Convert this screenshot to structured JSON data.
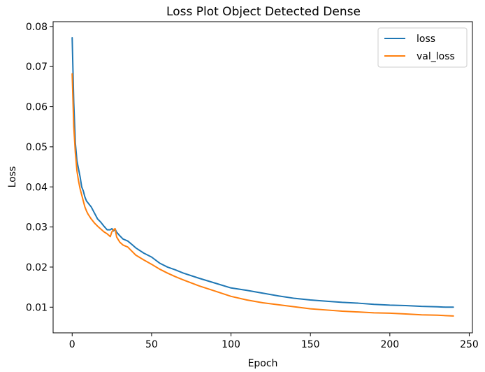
{
  "chart_data": {
    "type": "line",
    "title": "Loss Plot Object Detected Dense",
    "xlabel": "Epoch",
    "ylabel": "Loss",
    "xlim": [
      -12,
      252
    ],
    "ylim": [
      0.0036,
      0.0812
    ],
    "xticks": [
      0,
      50,
      100,
      150,
      200,
      250
    ],
    "yticks": [
      0.01,
      0.02,
      0.03,
      0.04,
      0.05,
      0.06,
      0.07,
      0.08
    ],
    "grid": false,
    "legend_position": "upper right",
    "series": [
      {
        "name": "loss",
        "color": "#1f77b4",
        "x": [
          0,
          1,
          2,
          3,
          4,
          5,
          6,
          7,
          8,
          9,
          10,
          12,
          14,
          16,
          18,
          20,
          22,
          24,
          25,
          26,
          27,
          28,
          30,
          32,
          35,
          38,
          40,
          45,
          50,
          55,
          60,
          65,
          70,
          80,
          90,
          100,
          110,
          120,
          130,
          140,
          150,
          160,
          170,
          180,
          190,
          200,
          210,
          220,
          230,
          235,
          240
        ],
        "y": [
          0.0772,
          0.061,
          0.051,
          0.0465,
          0.0445,
          0.0425,
          0.04,
          0.039,
          0.0375,
          0.0365,
          0.036,
          0.035,
          0.0335,
          0.032,
          0.0312,
          0.0302,
          0.0293,
          0.0293,
          0.0296,
          0.029,
          0.0295,
          0.0287,
          0.0278,
          0.027,
          0.0265,
          0.0255,
          0.0248,
          0.0235,
          0.0225,
          0.021,
          0.02,
          0.0193,
          0.0185,
          0.0172,
          0.016,
          0.0148,
          0.0142,
          0.0135,
          0.0128,
          0.0122,
          0.0118,
          0.0115,
          0.0112,
          0.011,
          0.0107,
          0.0105,
          0.0104,
          0.0102,
          0.0101,
          0.01,
          0.01
        ]
      },
      {
        "name": "val_loss",
        "color": "#ff7f0e",
        "x": [
          0,
          1,
          2,
          3,
          4,
          5,
          6,
          7,
          8,
          9,
          10,
          12,
          14,
          16,
          18,
          20,
          22,
          24,
          25,
          26,
          27,
          28,
          30,
          32,
          35,
          38,
          40,
          45,
          50,
          55,
          60,
          65,
          70,
          80,
          90,
          100,
          110,
          120,
          130,
          140,
          150,
          160,
          170,
          180,
          190,
          200,
          210,
          220,
          230,
          235,
          240
        ],
        "y": [
          0.0682,
          0.055,
          0.0485,
          0.044,
          0.0415,
          0.0395,
          0.038,
          0.0365,
          0.035,
          0.034,
          0.0332,
          0.032,
          0.031,
          0.0302,
          0.0295,
          0.0288,
          0.0283,
          0.0276,
          0.0288,
          0.0293,
          0.0296,
          0.0275,
          0.0262,
          0.0255,
          0.025,
          0.0238,
          0.023,
          0.0218,
          0.0207,
          0.0195,
          0.0185,
          0.0176,
          0.0168,
          0.0153,
          0.014,
          0.0127,
          0.0118,
          0.0111,
          0.0106,
          0.0101,
          0.0096,
          0.0093,
          0.009,
          0.0088,
          0.0086,
          0.0085,
          0.0083,
          0.0081,
          0.008,
          0.0079,
          0.0078
        ]
      }
    ]
  }
}
